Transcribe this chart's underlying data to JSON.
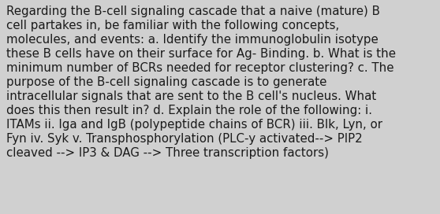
{
  "background_color": "#d0d0d0",
  "text_color": "#1a1a1a",
  "font_size": 10.8,
  "font_family": "DejaVu Sans",
  "lines": [
    "Regarding the B-cell signaling cascade that a naive (mature) B",
    "cell partakes in, be familiar with the following concepts,",
    "molecules, and events: a. Identify the immunoglobulin isotype",
    "these B cells have on their surface for Ag- Binding. b. What is the",
    "minimum number of BCRs needed for receptor clustering? c. The",
    "purpose of the B-cell signaling cascade is to generate",
    "intracellular signals that are sent to the B cell's nucleus. What",
    "does this then result in? d. Explain the role of the following: i.",
    "ITAMs ii. Iga and IgB (polypeptide chains of BCR) iii. Blk, Lyn, or",
    "Fyn iv. Syk v. Transphosphorylation (PLC-y activated--> PIP2",
    "cleaved --> IP3 & DAG --> Three transcription factors)"
  ],
  "figsize": [
    5.58,
    2.72
  ],
  "dpi": 100
}
